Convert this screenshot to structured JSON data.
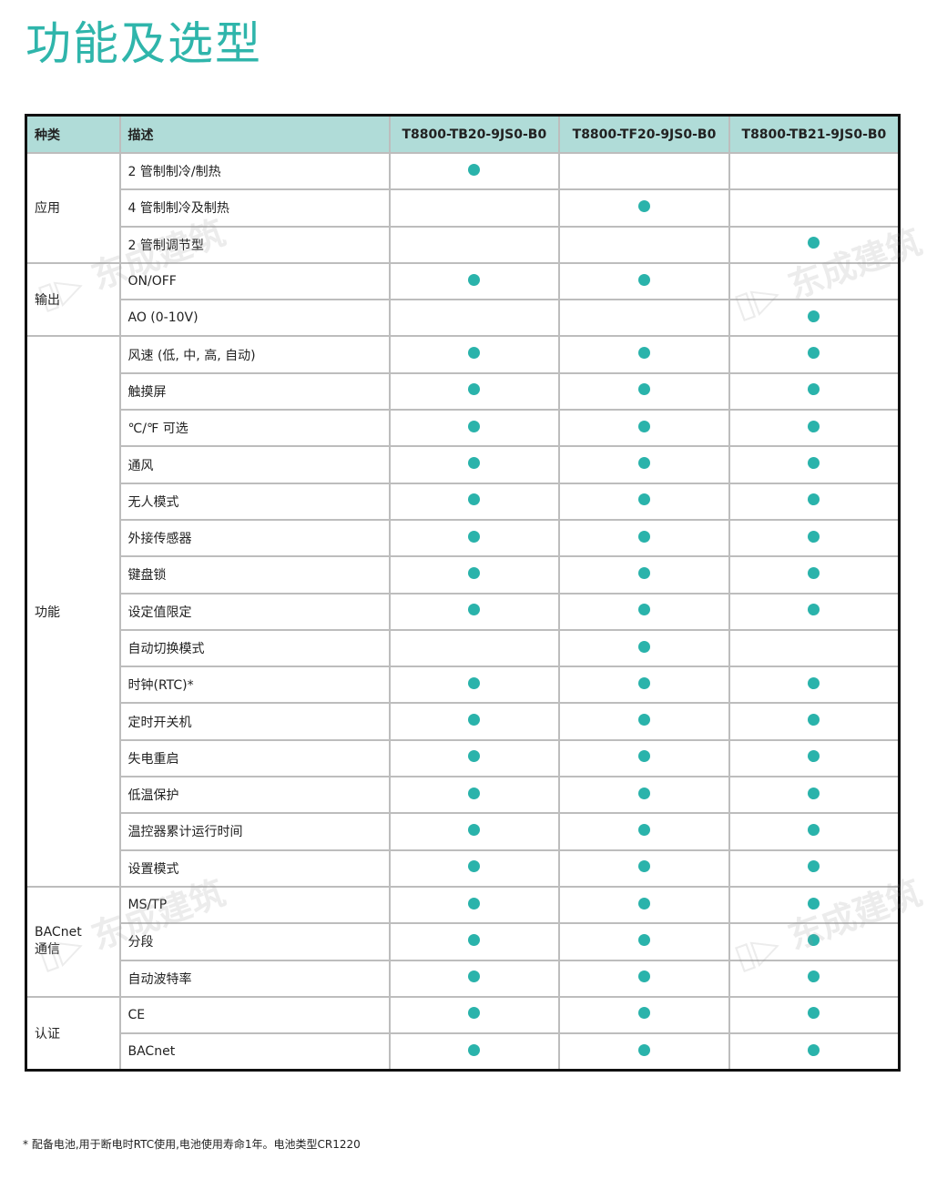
{
  "title": "功能及选型",
  "headers": {
    "category": "种类",
    "description": "描述",
    "models": [
      "T8800-TB20-9JS0-B0",
      "T8800-TF20-9JS0-B0",
      "T8800-TB21-9JS0-B0"
    ]
  },
  "groups": [
    {
      "label": "应用",
      "rows": [
        {
          "desc": "2 管制制冷/制热",
          "support": [
            true,
            false,
            false
          ]
        },
        {
          "desc": "4 管制制冷及制热",
          "support": [
            false,
            true,
            false
          ]
        },
        {
          "desc": "2 管制调节型",
          "support": [
            false,
            false,
            true
          ]
        }
      ]
    },
    {
      "label": "输出",
      "rows": [
        {
          "desc": "ON/OFF",
          "support": [
            true,
            true,
            false
          ]
        },
        {
          "desc": "AO (0-10V)",
          "support": [
            false,
            false,
            true
          ]
        }
      ]
    },
    {
      "label": "功能",
      "rows": [
        {
          "desc": "风速 (低, 中, 高, 自动)",
          "support": [
            true,
            true,
            true
          ]
        },
        {
          "desc": "触摸屏",
          "support": [
            true,
            true,
            true
          ]
        },
        {
          "desc": "℃/℉ 可选",
          "support": [
            true,
            true,
            true
          ]
        },
        {
          "desc": "通风",
          "support": [
            true,
            true,
            true
          ]
        },
        {
          "desc": "无人模式",
          "support": [
            true,
            true,
            true
          ]
        },
        {
          "desc": "外接传感器",
          "support": [
            true,
            true,
            true
          ]
        },
        {
          "desc": "键盘锁",
          "support": [
            true,
            true,
            true
          ]
        },
        {
          "desc": "设定值限定",
          "support": [
            true,
            true,
            true
          ]
        },
        {
          "desc": "自动切换模式",
          "support": [
            false,
            true,
            false
          ]
        },
        {
          "desc": "时钟(RTC)*",
          "support": [
            true,
            true,
            true
          ]
        },
        {
          "desc": "定时开关机",
          "support": [
            true,
            true,
            true
          ]
        },
        {
          "desc": "失电重启",
          "support": [
            true,
            true,
            true
          ]
        },
        {
          "desc": "低温保护",
          "support": [
            true,
            true,
            true
          ]
        },
        {
          "desc": "温控器累计运行时间",
          "support": [
            true,
            true,
            true
          ]
        },
        {
          "desc": "设置模式",
          "support": [
            true,
            true,
            true
          ]
        }
      ]
    },
    {
      "label": "BACnet\n通信",
      "rows": [
        {
          "desc": "MS/TP",
          "support": [
            true,
            true,
            true
          ]
        },
        {
          "desc": "分段",
          "support": [
            true,
            true,
            true
          ]
        },
        {
          "desc": "自动波特率",
          "support": [
            true,
            true,
            true
          ]
        }
      ]
    },
    {
      "label": "认证",
      "rows": [
        {
          "desc": "CE",
          "support": [
            true,
            true,
            true
          ]
        },
        {
          "desc": "BACnet",
          "support": [
            true,
            true,
            true
          ]
        }
      ]
    }
  ],
  "footnote": "* 配备电池,用于断电时RTC使用,电池使用寿命1年。电池类型CR1220",
  "watermark": "东成建筑",
  "colors": {
    "title": "#2fb5ab",
    "header_bg": "#b0dcd8",
    "dot": "#2ab3ab"
  }
}
